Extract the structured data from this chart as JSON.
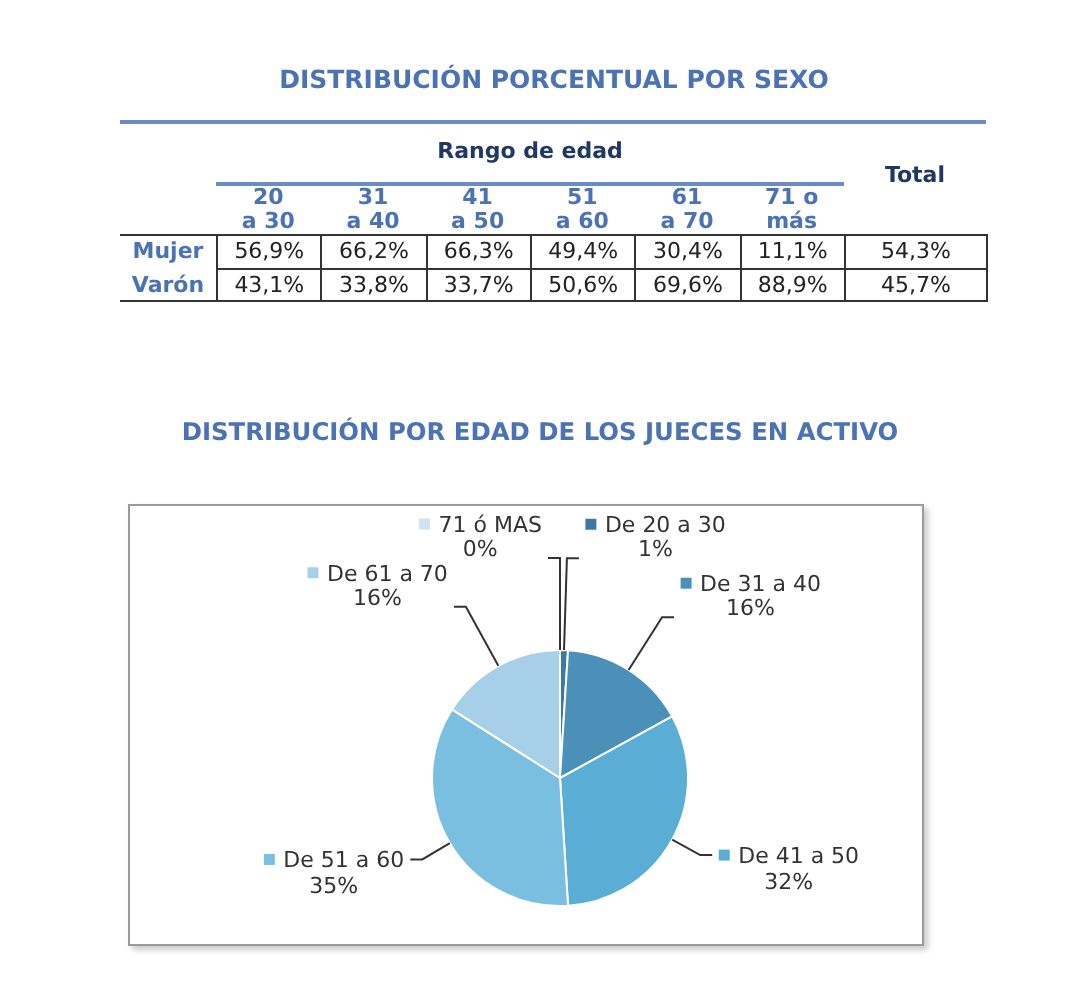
{
  "chart_data": [
    {
      "type": "other",
      "title": "DISTRIBUCIÓN PORCENTUAL POR SEXO",
      "xlabel": "Rango de edad",
      "categories": [
        "20\na 30",
        "31\na 40",
        "41\na 50",
        "51\na 60",
        "61\na 70",
        "71 o\nmás",
        "Total"
      ],
      "series": [
        {
          "name": "Mujer",
          "values": [
            56.9,
            66.2,
            66.3,
            49.4,
            30.4,
            11.1,
            54.3
          ],
          "value_labels": [
            "56,9%",
            "66,2%",
            "66,3%",
            "49,4%",
            "30,4%",
            "11,1%",
            "54,3%"
          ]
        },
        {
          "name": "Varón",
          "values": [
            43.1,
            33.8,
            33.7,
            50.6,
            69.6,
            88.9,
            45.7
          ],
          "value_labels": [
            "43,1%",
            "33,8%",
            "33,7%",
            "50,6%",
            "69,6%",
            "88,9%",
            "45,7%"
          ]
        }
      ]
    },
    {
      "type": "pie",
      "title": "DISTRIBUCIÓN POR EDAD DE LOS JUECES EN ACTIVO",
      "categories": [
        "De 20 a 30",
        "De 31 a 40",
        "De 41 a 50",
        "De 51 a 60",
        "De 61 a 70",
        "71 ó MAS"
      ],
      "values": [
        1,
        16,
        32,
        35,
        16,
        0
      ],
      "colors": [
        "#3d7aa3",
        "#4b90b8",
        "#5aaed6",
        "#7bbfe0",
        "#a7cfe7",
        "#cfe3f0"
      ],
      "value_labels": [
        "1%",
        "16%",
        "32%",
        "35%",
        "16%",
        "0%"
      ],
      "legend": "top"
    }
  ]
}
